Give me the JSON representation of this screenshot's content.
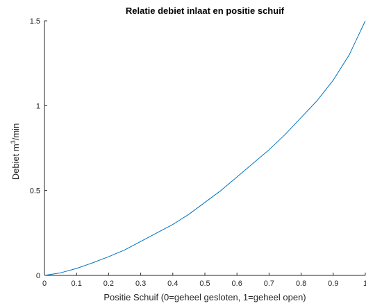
{
  "chart_data": {
    "type": "line",
    "title": "Relatie debiet inlaat en positie schuif",
    "xlabel": "Positie Schuif (0=geheel gesloten, 1=geheel open)",
    "ylabel": {
      "base": "Debiet m",
      "superscript": "3",
      "suffix": "/min"
    },
    "xlim": [
      0,
      1
    ],
    "ylim": [
      0,
      1.5
    ],
    "xticks": [
      0,
      0.1,
      0.2,
      0.3,
      0.4,
      0.5,
      0.6,
      0.7,
      0.8,
      0.9,
      1
    ],
    "xtick_labels": [
      "0",
      "0.1",
      "0.2",
      "0.3",
      "0.4",
      "0.5",
      "0.6",
      "0.7",
      "0.8",
      "0.9",
      "1"
    ],
    "yticks": [
      0,
      0.5,
      1,
      1.5
    ],
    "ytick_labels": [
      "0",
      "0.5",
      "1",
      "1.5"
    ],
    "grid": false,
    "series": [
      {
        "color": "#0072bd",
        "x": [
          0,
          0.05,
          0.1,
          0.15,
          0.2,
          0.25,
          0.3,
          0.35,
          0.4,
          0.45,
          0.5,
          0.55,
          0.6,
          0.65,
          0.7,
          0.75,
          0.8,
          0.85,
          0.9,
          0.95,
          1.0
        ],
        "y": [
          0,
          0.015,
          0.041,
          0.074,
          0.11,
          0.15,
          0.2,
          0.25,
          0.3,
          0.36,
          0.43,
          0.5,
          0.58,
          0.66,
          0.74,
          0.83,
          0.93,
          1.03,
          1.15,
          1.3,
          1.5
        ]
      }
    ]
  }
}
